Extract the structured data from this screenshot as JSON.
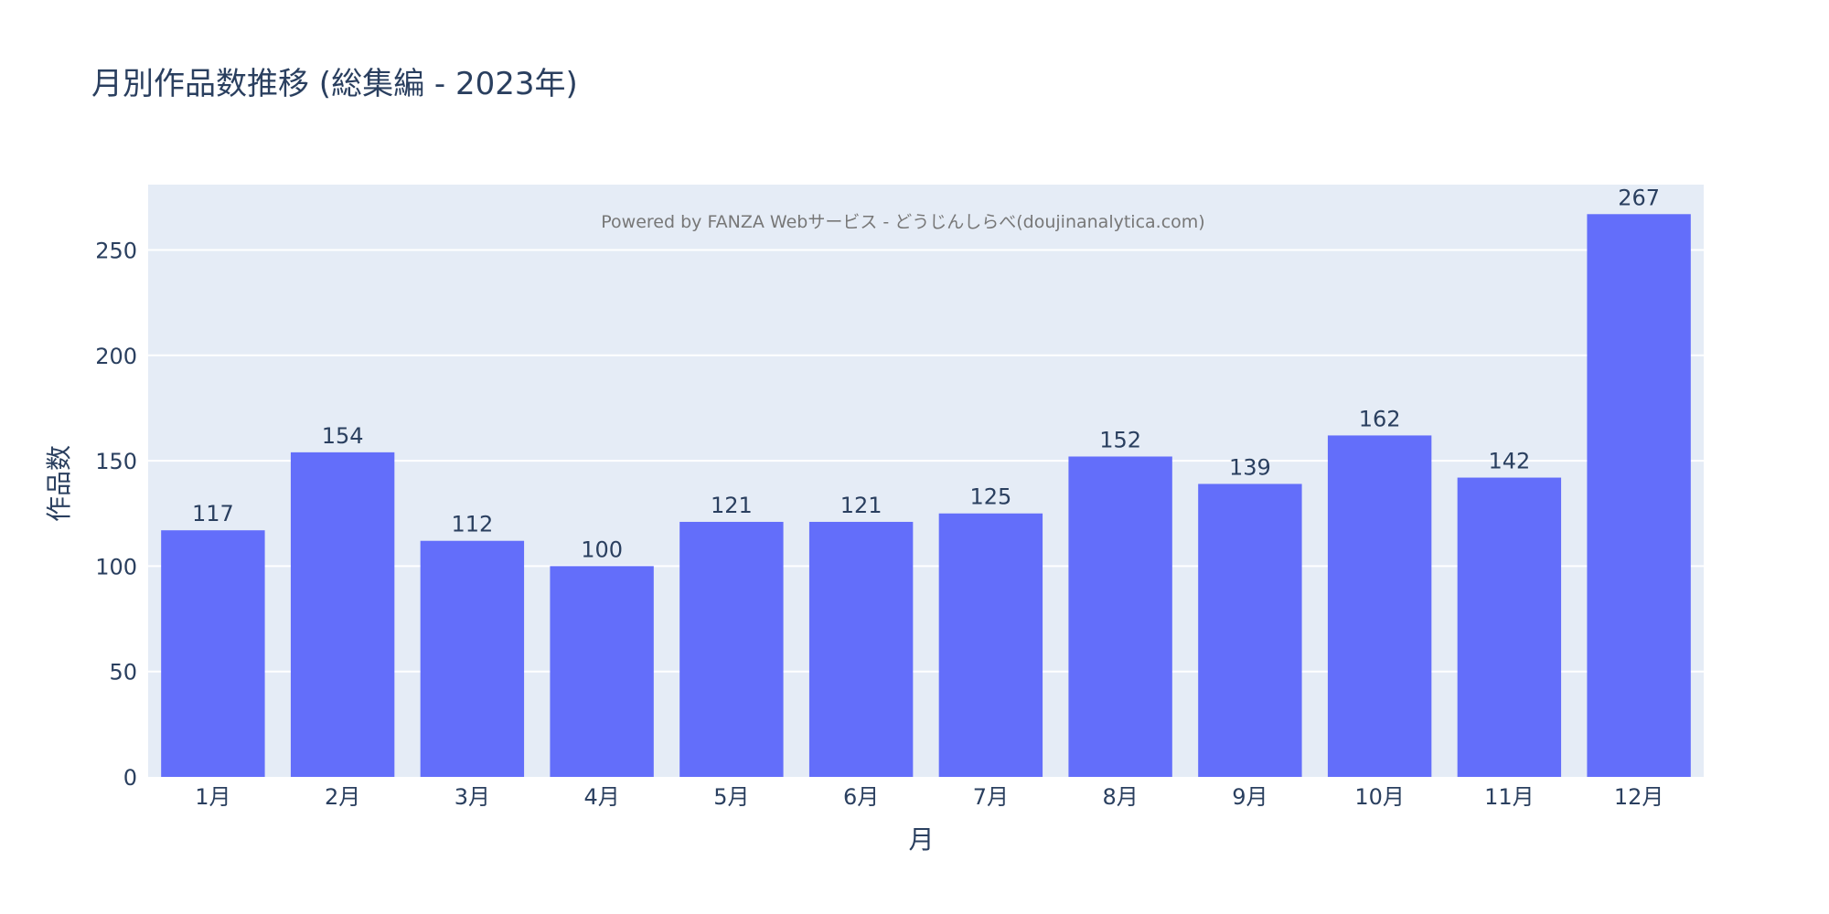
{
  "chart_data": {
    "type": "bar",
    "title": "月別作品数推移 (総集編 - 2023年)",
    "xlabel": "月",
    "ylabel": "作品数",
    "annotation": "Powered by FANZA Webサービス - どうじんしらべ(doujinanalytica.com)",
    "categories": [
      "1月",
      "2月",
      "3月",
      "4月",
      "5月",
      "6月",
      "7月",
      "8月",
      "9月",
      "10月",
      "11月",
      "12月"
    ],
    "values": [
      117,
      154,
      112,
      100,
      121,
      121,
      125,
      152,
      139,
      162,
      142,
      267
    ],
    "y_ticks": [
      0,
      50,
      100,
      150,
      200,
      250
    ],
    "ylim": [
      0,
      281
    ],
    "grid": true,
    "legend": "none",
    "colors": {
      "bar": "#636efa",
      "plot_bg": "#e5ecf6",
      "grid": "#ffffff",
      "text": "#2a3f5f",
      "annotation": "#777777"
    }
  }
}
